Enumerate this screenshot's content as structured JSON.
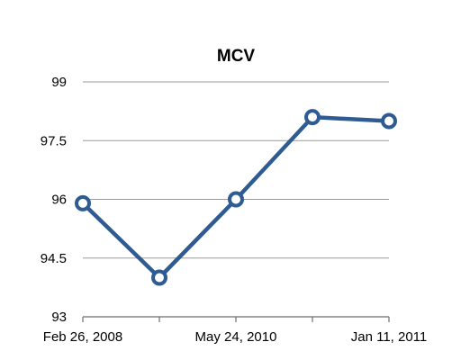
{
  "chart_data": {
    "type": "line",
    "title": "MCV",
    "xlabel": "",
    "ylabel": "",
    "x_tick_labels": [
      "Feb 26, 2008",
      "May 24, 2010",
      "Jan 11, 2011"
    ],
    "y_tick_labels": [
      "99",
      "97.5",
      "96",
      "94.5",
      "93"
    ],
    "ylim": [
      93,
      99
    ],
    "grid": true,
    "legend": "none",
    "series": [
      {
        "color": "#2f5b93",
        "values": [
          95.9,
          94.0,
          96.0,
          98.1,
          98.0
        ]
      }
    ]
  }
}
